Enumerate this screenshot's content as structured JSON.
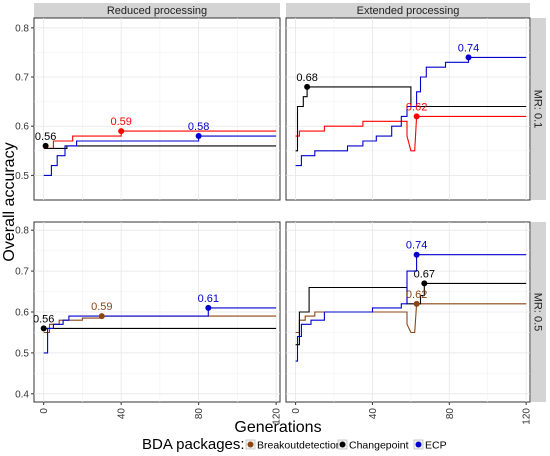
{
  "figure": {
    "ylabel": "Overall accuracy",
    "xlabel": "Generations",
    "legend_title": "BDA packages:",
    "legend_position": "bottom",
    "legend": [
      {
        "name": "Breakoutdetection",
        "color": "#8b4513"
      },
      {
        "name": "Changepoint",
        "color": "#000000"
      },
      {
        "name": "ECP",
        "color": "#0000cd"
      }
    ],
    "column_strips": [
      "Reduced processing",
      "Extended processing"
    ],
    "row_strips": [
      "MR: 0.1",
      "MR: 0.5"
    ]
  },
  "chart_data": [
    {
      "type": "line",
      "panel": "Reduced processing / MR: 0.1",
      "xlim": [
        -5,
        122
      ],
      "ylim": [
        0.45,
        0.82
      ],
      "x_ticks": [
        0,
        40,
        80,
        120
      ],
      "y_ticks": [
        0.5,
        0.6,
        0.7,
        0.8
      ],
      "grid": true,
      "series": [
        {
          "name": "Breakoutdetection",
          "color": "#ff0000",
          "points": [
            [
              0,
              0.555
            ],
            [
              5,
              0.555
            ],
            [
              5,
              0.57
            ],
            [
              15,
              0.57
            ],
            [
              15,
              0.58
            ],
            [
              40,
              0.58
            ],
            [
              40,
              0.59
            ],
            [
              120,
              0.59
            ]
          ]
        },
        {
          "name": "Changepoint",
          "color": "#000000",
          "points": [
            [
              0,
              0.56
            ],
            [
              1,
              0.56
            ],
            [
              1,
              0.555
            ],
            [
              12,
              0.555
            ],
            [
              12,
              0.56
            ],
            [
              120,
              0.56
            ]
          ]
        },
        {
          "name": "ECP",
          "color": "#0000cd",
          "points": [
            [
              0,
              0.5
            ],
            [
              4,
              0.5
            ],
            [
              4,
              0.52
            ],
            [
              7,
              0.52
            ],
            [
              7,
              0.54
            ],
            [
              11,
              0.54
            ],
            [
              11,
              0.56
            ],
            [
              17,
              0.56
            ],
            [
              17,
              0.57
            ],
            [
              80,
              0.57
            ],
            [
              80,
              0.58
            ],
            [
              120,
              0.58
            ]
          ]
        }
      ],
      "annotations": [
        {
          "x": 1,
          "y": 0.56,
          "label": "0.56",
          "color": "#000000"
        },
        {
          "x": 40,
          "y": 0.59,
          "label": "0.59",
          "color": "#ff0000"
        },
        {
          "x": 80,
          "y": 0.58,
          "label": "0.58",
          "color": "#0000cd"
        }
      ]
    },
    {
      "type": "line",
      "panel": "Extended processing / MR: 0.1",
      "xlim": [
        -5,
        122
      ],
      "ylim": [
        0.45,
        0.82
      ],
      "x_ticks": [
        0,
        40,
        80,
        120
      ],
      "y_ticks": [
        0.5,
        0.6,
        0.7,
        0.8
      ],
      "grid": true,
      "series": [
        {
          "name": "Breakoutdetection",
          "color": "#ff0000",
          "points": [
            [
              0,
              0.58
            ],
            [
              2,
              0.58
            ],
            [
              2,
              0.59
            ],
            [
              15,
              0.59
            ],
            [
              15,
              0.6
            ],
            [
              35,
              0.6
            ],
            [
              35,
              0.61
            ],
            [
              58,
              0.61
            ],
            [
              58,
              0.58
            ],
            [
              60,
              0.55
            ],
            [
              62,
              0.55
            ],
            [
              63,
              0.62
            ],
            [
              120,
              0.62
            ]
          ]
        },
        {
          "name": "Changepoint",
          "color": "#000000",
          "points": [
            [
              0,
              0.55
            ],
            [
              1,
              0.55
            ],
            [
              1,
              0.64
            ],
            [
              4,
              0.64
            ],
            [
              4,
              0.66
            ],
            [
              6,
              0.66
            ],
            [
              6,
              0.68
            ],
            [
              60,
              0.68
            ],
            [
              60,
              0.64
            ],
            [
              120,
              0.64
            ]
          ]
        },
        {
          "name": "ECP",
          "color": "#0000cd",
          "points": [
            [
              0,
              0.52
            ],
            [
              3,
              0.52
            ],
            [
              3,
              0.54
            ],
            [
              10,
              0.54
            ],
            [
              10,
              0.55
            ],
            [
              27,
              0.55
            ],
            [
              27,
              0.56
            ],
            [
              35,
              0.56
            ],
            [
              35,
              0.57
            ],
            [
              42,
              0.57
            ],
            [
              42,
              0.58
            ],
            [
              50,
              0.58
            ],
            [
              50,
              0.6
            ],
            [
              55,
              0.6
            ],
            [
              55,
              0.62
            ],
            [
              58,
              0.62
            ],
            [
              58,
              0.64
            ],
            [
              63,
              0.64
            ],
            [
              63,
              0.67
            ],
            [
              65,
              0.67
            ],
            [
              65,
              0.7
            ],
            [
              68,
              0.7
            ],
            [
              68,
              0.72
            ],
            [
              78,
              0.72
            ],
            [
              78,
              0.73
            ],
            [
              90,
              0.73
            ],
            [
              90,
              0.74
            ],
            [
              120,
              0.74
            ]
          ]
        }
      ],
      "annotations": [
        {
          "x": 6,
          "y": 0.68,
          "label": "0.68",
          "color": "#000000"
        },
        {
          "x": 63,
          "y": 0.62,
          "label": "0.62",
          "color": "#ff0000"
        },
        {
          "x": 90,
          "y": 0.74,
          "label": "0.74",
          "color": "#0000cd"
        }
      ]
    },
    {
      "type": "line",
      "panel": "Reduced processing / MR: 0.5",
      "xlim": [
        -5,
        122
      ],
      "ylim": [
        0.38,
        0.82
      ],
      "x_ticks": [
        0,
        40,
        80,
        120
      ],
      "y_ticks": [
        0.4,
        0.5,
        0.6,
        0.7,
        0.8
      ],
      "grid": true,
      "series": [
        {
          "name": "Breakoutdetection",
          "color": "#8b4513",
          "points": [
            [
              0,
              0.55
            ],
            [
              3,
              0.55
            ],
            [
              3,
              0.57
            ],
            [
              8,
              0.57
            ],
            [
              8,
              0.58
            ],
            [
              20,
              0.58
            ],
            [
              20,
              0.585
            ],
            [
              30,
              0.585
            ],
            [
              30,
              0.59
            ],
            [
              120,
              0.59
            ]
          ]
        },
        {
          "name": "Changepoint",
          "color": "#000000",
          "points": [
            [
              0,
              0.56
            ],
            [
              1,
              0.56
            ],
            [
              1,
              0.56
            ],
            [
              120,
              0.56
            ]
          ]
        },
        {
          "name": "ECP",
          "color": "#0000cd",
          "points": [
            [
              0,
              0.5
            ],
            [
              2,
              0.5
            ],
            [
              2,
              0.56
            ],
            [
              5,
              0.56
            ],
            [
              5,
              0.57
            ],
            [
              10,
              0.57
            ],
            [
              10,
              0.58
            ],
            [
              13,
              0.58
            ],
            [
              13,
              0.59
            ],
            [
              85,
              0.59
            ],
            [
              85,
              0.61
            ],
            [
              120,
              0.61
            ]
          ]
        }
      ],
      "annotations": [
        {
          "x": 0,
          "y": 0.56,
          "label": "0.56",
          "color": "#000000"
        },
        {
          "x": 30,
          "y": 0.59,
          "label": "0.59",
          "color": "#8b4513"
        },
        {
          "x": 85,
          "y": 0.61,
          "label": "0.61",
          "color": "#0000cd"
        }
      ]
    },
    {
      "type": "line",
      "panel": "Extended processing / MR: 0.5",
      "xlim": [
        -5,
        122
      ],
      "ylim": [
        0.38,
        0.82
      ],
      "x_ticks": [
        0,
        40,
        80,
        120
      ],
      "y_ticks": [
        0.4,
        0.5,
        0.6,
        0.7,
        0.8
      ],
      "grid": true,
      "series": [
        {
          "name": "Breakoutdetection",
          "color": "#8b4513",
          "points": [
            [
              0,
              0.55
            ],
            [
              2,
              0.55
            ],
            [
              2,
              0.58
            ],
            [
              5,
              0.58
            ],
            [
              5,
              0.59
            ],
            [
              10,
              0.59
            ],
            [
              10,
              0.6
            ],
            [
              58,
              0.6
            ],
            [
              58,
              0.57
            ],
            [
              60,
              0.55
            ],
            [
              62,
              0.55
            ],
            [
              63,
              0.62
            ],
            [
              120,
              0.62
            ]
          ]
        },
        {
          "name": "Changepoint",
          "color": "#000000",
          "points": [
            [
              0,
              0.52
            ],
            [
              2,
              0.52
            ],
            [
              2,
              0.6
            ],
            [
              7,
              0.6
            ],
            [
              7,
              0.66
            ],
            [
              58,
              0.66
            ],
            [
              58,
              0.62
            ],
            [
              65,
              0.62
            ],
            [
              65,
              0.64
            ],
            [
              67,
              0.64
            ],
            [
              67,
              0.67
            ],
            [
              120,
              0.67
            ]
          ]
        },
        {
          "name": "ECP",
          "color": "#0000cd",
          "points": [
            [
              0,
              0.48
            ],
            [
              1,
              0.48
            ],
            [
              1,
              0.54
            ],
            [
              3,
              0.54
            ],
            [
              3,
              0.57
            ],
            [
              8,
              0.57
            ],
            [
              8,
              0.58
            ],
            [
              15,
              0.58
            ],
            [
              15,
              0.6
            ],
            [
              40,
              0.6
            ],
            [
              40,
              0.61
            ],
            [
              55,
              0.61
            ],
            [
              55,
              0.62
            ],
            [
              58,
              0.62
            ],
            [
              58,
              0.7
            ],
            [
              63,
              0.7
            ],
            [
              63,
              0.74
            ],
            [
              120,
              0.74
            ]
          ]
        }
      ],
      "annotations": [
        {
          "x": 63,
          "y": 0.74,
          "label": "0.74",
          "color": "#0000cd"
        },
        {
          "x": 67,
          "y": 0.67,
          "label": "0.67",
          "color": "#000000"
        },
        {
          "x": 63,
          "y": 0.62,
          "label": "0.62",
          "color": "#8b4513"
        }
      ]
    }
  ]
}
